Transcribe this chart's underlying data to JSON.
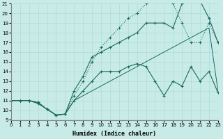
{
  "xlabel": "Humidex (Indice chaleur)",
  "bg_color": "#c8ebe8",
  "grid_color": "#a8d8d4",
  "line_color": "#1a6b5a",
  "spine_color": "#888888",
  "x_min": 0,
  "x_max": 23,
  "y_min": 9,
  "y_max": 21,
  "series": [
    {
      "x": [
        0,
        1,
        2,
        3,
        4,
        5,
        6,
        7,
        8,
        9,
        10,
        11,
        12,
        13,
        14,
        15,
        16,
        17,
        18,
        19,
        20,
        21,
        22,
        23
      ],
      "y": [
        11,
        11,
        11,
        10.8,
        10.1,
        9.5,
        9.6,
        11.0,
        12.0,
        13.0,
        14.0,
        14.0,
        14.0,
        14.5,
        14.8,
        14.5,
        13.0,
        11.5,
        13.0,
        12.5,
        14.5,
        13.0,
        14.0,
        11.8
      ],
      "style": "-",
      "marker": "+",
      "markersize": 3,
      "linewidth": 0.8
    },
    {
      "x": [
        0,
        1,
        2,
        3,
        4,
        5,
        6,
        7,
        8,
        9,
        10,
        11,
        12,
        13,
        14,
        15,
        16,
        17,
        18,
        19,
        20,
        21,
        22,
        23
      ],
      "y": [
        11,
        11,
        11,
        10.7,
        10.1,
        9.5,
        9.6,
        11.0,
        11.5,
        12.0,
        12.5,
        13.0,
        13.5,
        14.0,
        14.5,
        15.0,
        15.5,
        16.0,
        16.5,
        17.0,
        17.5,
        18.0,
        18.5,
        12.0
      ],
      "style": "-",
      "marker": null,
      "markersize": 0,
      "linewidth": 0.7
    },
    {
      "x": [
        0,
        1,
        2,
        3,
        4,
        5,
        6,
        7,
        8,
        9,
        10,
        11,
        12,
        13,
        14,
        15,
        16,
        17,
        18,
        19,
        20,
        21,
        22,
        23
      ],
      "y": [
        11,
        11,
        11,
        10.7,
        10.1,
        9.5,
        9.6,
        12.0,
        13.5,
        15.5,
        16.0,
        16.5,
        17.0,
        17.5,
        18.0,
        19.0,
        19.0,
        19.0,
        18.5,
        21.0,
        21.2,
        21.3,
        19.5,
        17.0
      ],
      "style": "-",
      "marker": "+",
      "markersize": 3,
      "linewidth": 0.8
    },
    {
      "x": [
        0,
        1,
        2,
        3,
        4,
        5,
        6,
        7,
        8,
        9,
        10,
        11,
        12,
        13,
        14,
        15,
        16,
        17,
        18,
        19,
        20,
        21,
        22,
        23
      ],
      "y": [
        11,
        11,
        11,
        10.8,
        10.1,
        9.5,
        9.6,
        11.5,
        13.0,
        15.0,
        16.5,
        17.5,
        18.5,
        19.5,
        20.0,
        21.0,
        21.3,
        21.5,
        21.0,
        19.0,
        17.0,
        17.0,
        19.0,
        17.0
      ],
      "style": ":",
      "marker": "+",
      "markersize": 3,
      "linewidth": 0.8
    }
  ]
}
